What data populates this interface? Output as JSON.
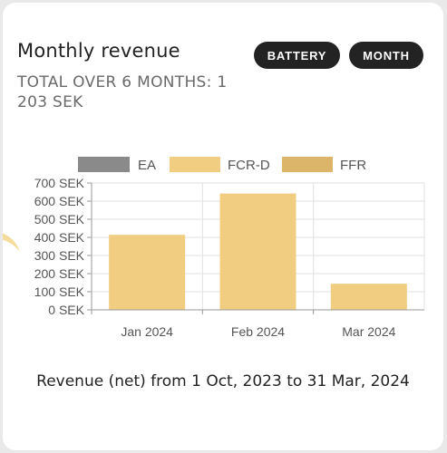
{
  "card": {
    "title": "Monthly revenue",
    "total_line1": "TOTAL OVER 6 MONTHS: 1",
    "total_line2": "203 SEK"
  },
  "buttons": {
    "battery": "BATTERY",
    "month": "MONTH"
  },
  "footer": "Revenue (net) from 1 Oct, 2023 to 31 Mar, 2024",
  "colors": {
    "EA": "#8a8a8a",
    "FCR-D": "#f0cd80",
    "FFR": "#dcb56a"
  },
  "chart_data": {
    "type": "bar",
    "stacked": true,
    "categories": [
      "Jan 2024",
      "Feb 2024",
      "Mar 2024"
    ],
    "series": [
      {
        "name": "EA",
        "values": [
          0,
          0,
          0
        ]
      },
      {
        "name": "FCR-D",
        "values": [
          414,
          642,
          144
        ]
      },
      {
        "name": "FFR",
        "values": [
          0,
          0,
          0
        ]
      }
    ],
    "ylim": [
      0,
      700
    ],
    "y_ticks": [
      0,
      100,
      200,
      300,
      400,
      500,
      600,
      700
    ],
    "y_tick_labels": [
      "0 SEK",
      "100 SEK",
      "200 SEK",
      "300 SEK",
      "400 SEK",
      "500 SEK",
      "600 SEK",
      "700 SEK"
    ],
    "grid": true,
    "legend_position": "top"
  }
}
